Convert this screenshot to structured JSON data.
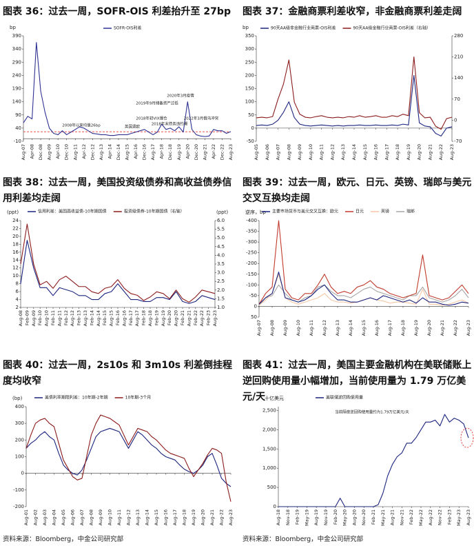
{
  "chart_data": [
    {
      "type": "line",
      "title": "图表 36：过去一周，SOFR-OIS 利差抬升至 27bp",
      "y_label": "bp",
      "categories": [
        "Aug-07",
        null,
        "Apr-08",
        null,
        "Dec-08",
        null,
        "Aug-09",
        null,
        "Apr-10",
        null,
        "Dec-10",
        null,
        "Aug-11",
        null,
        "Apr-12",
        null,
        "Dec-12",
        null,
        "Aug-13",
        null,
        "Apr-14",
        null,
        "Dec-14",
        null,
        "Aug-15",
        null,
        "Apr-16",
        null,
        "Dec-16",
        null,
        "Aug-17",
        null,
        "Apr-18",
        null,
        "Dec-18",
        null,
        "Aug-19",
        null,
        "Apr-20",
        null,
        "Dec-20",
        null,
        "Aug-21",
        null,
        "Apr-22",
        null,
        "Dec-22",
        null,
        "Aug-23"
      ],
      "series": [
        {
          "name": "SOFR-OIS利差",
          "color": "#2e3192",
          "values": [
            60,
            85,
            75,
            365,
            180,
            100,
            40,
            20,
            15,
            30,
            15,
            25,
            35,
            45,
            40,
            30,
            20,
            18,
            15,
            15,
            12,
            12,
            15,
            15,
            15,
            20,
            25,
            30,
            35,
            25,
            15,
            25,
            55,
            35,
            40,
            30,
            45,
            25,
            140,
            35,
            15,
            10,
            8,
            10,
            35,
            30,
            30,
            20,
            27
          ]
        }
      ],
      "reference_line": 26,
      "reference_color": "#e53935",
      "annotations": [
        "2008年以来均值26bp",
        "英国退欧",
        "2018年初VIX爆仓",
        "2018年末债务违约潮",
        "2019年9月储备资产过低",
        "2020年3月疫情",
        "2022年3月俄乌冲突"
      ],
      "ylim": [
        -10,
        390
      ],
      "yticks": [
        -10,
        40,
        90,
        140,
        190,
        240,
        290,
        340,
        390
      ]
    },
    {
      "type": "line",
      "title": "图表 37：金融商票利差收窄，非金融商票利差走阔",
      "y_label": "bp",
      "categories": [
        "Aug-05",
        null,
        "Aug-06",
        null,
        "Aug-07",
        null,
        "Aug-08",
        null,
        "Aug-09",
        null,
        "Aug-10",
        null,
        "Aug-11",
        null,
        "Aug-12",
        null,
        "Aug-13",
        null,
        "Aug-14",
        null,
        "Aug-15",
        null,
        "Aug-16",
        null,
        "Aug-17",
        null,
        "Aug-18",
        null,
        "Aug-19",
        null,
        "Aug-20",
        null,
        "Aug-21",
        null,
        "Aug-22",
        null,
        "Aug-23"
      ],
      "series": [
        {
          "name": "90天AA级非金融行业商票-OIS利差",
          "color": "#1a237e",
          "values": [
            10,
            12,
            10,
            15,
            30,
            60,
            100,
            40,
            15,
            10,
            8,
            10,
            12,
            10,
            8,
            10,
            8,
            10,
            10,
            12,
            10,
            10,
            12,
            10,
            10,
            12,
            10,
            15,
            12,
            200,
            20,
            8,
            5,
            -20,
            -30,
            0,
            5
          ]
        },
        {
          "name": "90天AA级金融行业商票-OIS利差（右轴）",
          "color": "#8b1a1a",
          "axis": "y2",
          "values": [
            8,
            10,
            8,
            12,
            70,
            120,
            200,
            60,
            20,
            10,
            8,
            12,
            15,
            10,
            8,
            10,
            8,
            12,
            10,
            15,
            10,
            12,
            15,
            10,
            10,
            15,
            12,
            20,
            15,
            210,
            25,
            8,
            10,
            -20,
            -30,
            5,
            10
          ]
        }
      ],
      "ylim": [
        -50,
        350
      ],
      "yticks": [
        -50,
        0,
        50,
        100,
        150,
        200,
        250,
        300,
        350
      ],
      "y2lim": [
        -70,
        280
      ],
      "y2ticks": [
        -70,
        0,
        70,
        140,
        210,
        280
      ]
    },
    {
      "type": "line",
      "title": "图表 38：过去一周，美国投资级债券和高收益债券信用利差均走阔",
      "y_label": "(ppt)",
      "y2_label": "(ppt)",
      "categories": [
        "Aug-08",
        "Feb-09",
        "Aug-09",
        "Feb-10",
        "Aug-10",
        "Feb-11",
        "Aug-11",
        "Feb-12",
        "Aug-12",
        "Feb-13",
        "Aug-13",
        "Feb-14",
        "Aug-14",
        "Feb-15",
        "Aug-15",
        "Feb-16",
        "Aug-16",
        "Feb-17",
        "Aug-17",
        "Feb-18",
        "Aug-18",
        "Feb-19",
        "Aug-19",
        "Feb-20",
        "Aug-20",
        "Feb-21",
        "Aug-21",
        "Feb-22",
        "Aug-22",
        "Feb-23",
        "Aug-23"
      ],
      "series": [
        {
          "name": "信用利差：美国高收益债-10年期国债",
          "color": "#1a237e",
          "values": [
            8,
            19,
            12,
            7,
            7,
            5,
            7,
            6.5,
            6,
            5,
            5,
            4,
            4,
            5.5,
            6,
            8,
            6,
            4,
            4,
            3.5,
            3.5,
            4.5,
            4.5,
            4,
            6,
            3.5,
            3,
            3.5,
            5,
            4.5,
            4
          ]
        },
        {
          "name": "投资级债券-10年期国债（右轴）",
          "color": "#8b1a1a",
          "axis": "y2",
          "values": [
            3.5,
            5.8,
            3.5,
            2.3,
            2.5,
            2.1,
            2.6,
            2.8,
            2.5,
            2.2,
            2.2,
            1.9,
            1.8,
            2.1,
            2.2,
            2.6,
            2.1,
            1.8,
            1.7,
            1.4,
            1.6,
            1.9,
            1.8,
            1.5,
            2.0,
            1.5,
            1.3,
            1.6,
            2.0,
            1.9,
            1.8
          ]
        }
      ],
      "ylim": [
        2,
        24
      ],
      "yticks": [
        2,
        4,
        6,
        8,
        10,
        12,
        14,
        16,
        18,
        20,
        22,
        24
      ],
      "y2lim": [
        1,
        6
      ],
      "y2ticks": [
        {
          "value": 1,
          "label": "1.0"
        },
        1.5,
        {
          "value": 2,
          "label": "2.0"
        },
        2.5,
        {
          "value": 3,
          "label": "3.0"
        },
        3.5,
        {
          "value": 4,
          "label": "4.0"
        },
        4.5,
        {
          "value": 5,
          "label": "5.0"
        },
        5.5,
        {
          "value": 6,
          "label": "6.0"
        }
      ]
    },
    {
      "type": "line",
      "title": "图表 39：过去一周，欧元、日元、英镑、瑞郎与美元交叉互换均走阔",
      "y_label": "逆序，bp",
      "y_reversed": true,
      "categories": [
        "Aug-07",
        null,
        "Aug-08",
        null,
        "Aug-09",
        null,
        "Aug-10",
        null,
        "Aug-11",
        null,
        "Aug-12",
        null,
        "Aug-13",
        null,
        "Aug-14",
        null,
        "Aug-15",
        null,
        "Aug-16",
        null,
        "Aug-17",
        null,
        "Aug-18",
        null,
        "Aug-19",
        null,
        "Aug-20",
        null,
        "Aug-21",
        null,
        "Aug-22",
        null,
        "Aug-23"
      ],
      "series": [
        {
          "name": "瑞郎",
          "color": "#a6a6a6",
          "values": [
            -5,
            -40,
            -50,
            -100,
            -60,
            -30,
            -20,
            -40,
            -50,
            -90,
            -100,
            -70,
            -50,
            -50,
            -40,
            -60,
            -80,
            -90,
            -70,
            -60,
            -50,
            -40,
            -30,
            -50,
            -50,
            -90,
            -40,
            -30,
            -20,
            -30,
            -50,
            -80,
            -40
          ]
        },
        {
          "name": "英镑",
          "color": "#f5c6a5",
          "values": [
            -5,
            -30,
            -60,
            -150,
            -40,
            -20,
            -10,
            -20,
            -30,
            -40,
            -60,
            -30,
            -20,
            -20,
            -15,
            -20,
            -30,
            -40,
            -30,
            -25,
            -15,
            -20,
            -20,
            -15,
            -10,
            -80,
            -10,
            -10,
            -5,
            -10,
            -20,
            -30,
            -15
          ]
        },
        {
          "name": "日元",
          "color": "#c0392b",
          "values": [
            -10,
            -60,
            -90,
            -400,
            -80,
            -40,
            -30,
            -60,
            -60,
            -100,
            -150,
            -90,
            -60,
            -70,
            -60,
            -90,
            -100,
            -120,
            -90,
            -80,
            -60,
            -50,
            -40,
            -50,
            -60,
            -240,
            -50,
            -40,
            -30,
            -40,
            -70,
            -100,
            -60
          ]
        },
        {
          "name": "主要市场货币与美元交叉互换：欧元",
          "color": "#1a237e",
          "values": [
            -10,
            -40,
            -60,
            -160,
            -40,
            -30,
            -20,
            -30,
            -50,
            -80,
            -100,
            -60,
            -30,
            -30,
            -20,
            -20,
            -30,
            -40,
            -30,
            -50,
            -40,
            -30,
            -20,
            -30,
            -15,
            -40,
            -20,
            -20,
            -10,
            -5,
            -10,
            -20,
            -15
          ]
        }
      ],
      "legend_order": [
        3,
        2,
        1,
        0
      ],
      "ylim": [
        -400,
        50
      ],
      "yticks": [
        -400,
        -350,
        -300,
        -250,
        -200,
        -150,
        -100,
        -50,
        0,
        50
      ]
    },
    {
      "type": "line",
      "title": "图表 40：过去一周，2s10s 和 3m10s 利差倒挂程度均收窄",
      "y_label": "(bp)",
      "categories": [
        "Aug-01",
        null,
        "Aug-02",
        null,
        "Aug-03",
        null,
        "Aug-04",
        null,
        "Aug-05",
        null,
        "Aug-06",
        null,
        "Aug-07",
        null,
        "Aug-08",
        null,
        "Aug-09",
        null,
        "Aug-10",
        null,
        "Aug-11",
        null,
        "Aug-12",
        null,
        "Aug-13",
        null,
        "Aug-14",
        null,
        "Aug-15",
        null,
        "Aug-16",
        null,
        "Aug-17",
        null,
        "Aug-18",
        null,
        "Aug-19",
        null,
        "Aug-20",
        null,
        "Aug-21",
        null,
        "Aug-22",
        null,
        "Aug-23"
      ],
      "series": [
        {
          "name": "美债利率期限利差：10年期-2年期",
          "color": "#1a237e",
          "values": [
            150,
            180,
            200,
            230,
            250,
            220,
            200,
            120,
            50,
            20,
            0,
            -10,
            20,
            80,
            150,
            220,
            250,
            260,
            270,
            260,
            250,
            200,
            150,
            200,
            250,
            230,
            200,
            170,
            150,
            120,
            100,
            90,
            80,
            50,
            25,
            10,
            0,
            20,
            50,
            100,
            120,
            50,
            -30,
            -60,
            -80
          ]
        },
        {
          "name": "10年期-3个月",
          "color": "#8b1a1a",
          "values": [
            150,
            230,
            300,
            320,
            330,
            300,
            280,
            180,
            80,
            30,
            -20,
            -40,
            -30,
            100,
            230,
            300,
            350,
            340,
            330,
            310,
            290,
            230,
            170,
            220,
            270,
            260,
            250,
            220,
            200,
            170,
            140,
            120,
            110,
            100,
            90,
            30,
            -20,
            20,
            60,
            110,
            150,
            140,
            120,
            -50,
            -170
          ]
        }
      ],
      "ylim": [
        -200,
        400
      ],
      "yticks": [
        -200,
        -100,
        0,
        100,
        200,
        300,
        400
      ]
    },
    {
      "type": "line",
      "title": "图表 41：过去一周，美国主要金融机构在美联储账上逆回购使用量小幅增加，当前使用量为 1.79 万亿美元/天",
      "y_label": "十亿美元",
      "categories": [
        "Aug-18",
        null,
        "Nov-18",
        null,
        "Feb-19",
        null,
        "May-19",
        null,
        "Aug-19",
        null,
        "Nov-19",
        null,
        "Feb-20",
        null,
        "May-20",
        null,
        "Aug-20",
        null,
        "Nov-20",
        null,
        "Feb-21",
        null,
        "May-21",
        null,
        "Aug-21",
        null,
        "Nov-21",
        null,
        "Feb-22",
        null,
        "May-22",
        null,
        "Aug-22",
        null,
        "Nov-22",
        null,
        "Feb-23",
        null,
        "May-23",
        null,
        "Aug-23"
      ],
      "series": [
        {
          "name": "美联储逆回购使用量",
          "color": "#1a237e",
          "values": [
            0,
            0,
            0,
            0,
            0,
            0,
            0,
            0,
            0,
            0,
            0,
            0,
            0,
            220,
            0,
            0,
            0,
            0,
            0,
            0,
            0,
            50,
            350,
            800,
            1100,
            1300,
            1400,
            1650,
            1650,
            1800,
            2000,
            2200,
            2200,
            2250,
            2100,
            2400,
            2200,
            2300,
            2250,
            2150,
            1790
          ]
        }
      ],
      "annotations": [
        "当前隔夜逆回购使用量约为1.79万亿美元/天"
      ],
      "ylim": [
        0,
        2600
      ],
      "yticks": [
        0,
        500,
        {
          "value": 1000,
          "label": "1,000"
        },
        {
          "value": 1500,
          "label": "1,500"
        },
        {
          "value": 2000,
          "label": "2,000"
        },
        {
          "value": 2500,
          "label": "2,500"
        }
      ]
    }
  ],
  "source_notes": [
    "资料来源：Bloomberg，中金公司研究部",
    "资料来源：Bloomberg，中金公司研究部"
  ]
}
